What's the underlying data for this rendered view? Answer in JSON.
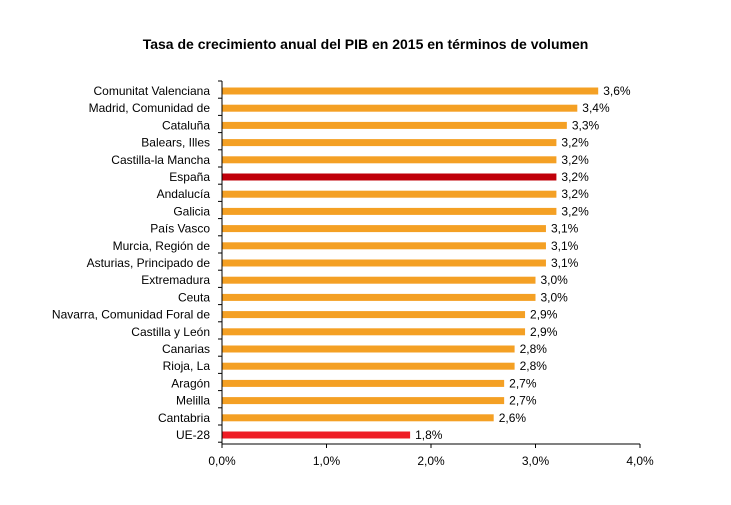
{
  "chart_data": {
    "type": "bar",
    "orientation": "horizontal",
    "title": "Tasa de crecimiento anual del PIB en 2015 en términos de volumen",
    "xlabel": "",
    "ylabel": "",
    "xlim": [
      0,
      4.0
    ],
    "ticks": [
      0,
      1,
      2,
      3,
      4
    ],
    "tick_labels": [
      "0,0%",
      "1,0%",
      "2,0%",
      "3,0%",
      "4,0%"
    ],
    "categories": [
      "Comunitat Valenciana",
      "Madrid, Comunidad de",
      "Cataluña",
      "Balears, Illes",
      "Castilla-la Mancha",
      "España",
      "Andalucía",
      "Galicia",
      "País Vasco",
      "Murcia, Región de",
      "Asturias, Principado de",
      "Extremadura",
      "Ceuta",
      "Navarra, Comunidad Foral de",
      "Castilla y León",
      "Canarias",
      "Rioja, La",
      "Aragón",
      "Melilla",
      "Cantabria",
      "UE-28"
    ],
    "values": [
      3.6,
      3.4,
      3.3,
      3.2,
      3.2,
      3.2,
      3.2,
      3.2,
      3.1,
      3.1,
      3.1,
      3.0,
      3.0,
      2.9,
      2.9,
      2.8,
      2.8,
      2.7,
      2.7,
      2.6,
      1.8
    ],
    "value_labels": [
      "3,6%",
      "3,4%",
      "3,3%",
      "3,2%",
      "3,2%",
      "3,2%",
      "3,2%",
      "3,2%",
      "3,1%",
      "3,1%",
      "3,1%",
      "3,0%",
      "3,0%",
      "2,9%",
      "2,9%",
      "2,8%",
      "2,8%",
      "2,7%",
      "2,7%",
      "2,6%",
      "1,8%"
    ],
    "bar_colors": [
      "#f4a024",
      "#f4a024",
      "#f4a024",
      "#f4a024",
      "#f4a024",
      "#c0000a",
      "#f4a024",
      "#f4a024",
      "#f4a024",
      "#f4a024",
      "#f4a024",
      "#f4a024",
      "#f4a024",
      "#f4a024",
      "#f4a024",
      "#f4a024",
      "#f4a024",
      "#f4a024",
      "#f4a024",
      "#f4a024",
      "#ee1c25"
    ],
    "grid": false,
    "legend": "none"
  }
}
